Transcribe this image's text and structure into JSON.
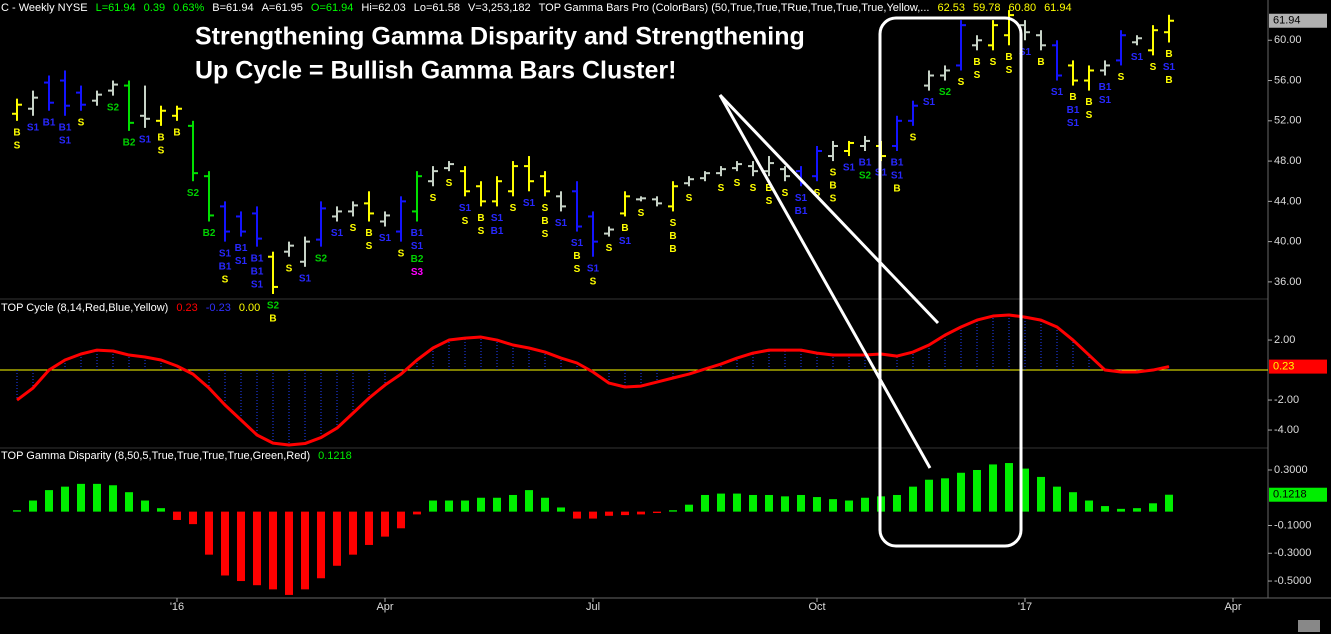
{
  "chart_data": [
    {
      "type": "ohlc",
      "title": "C - Weekly  NYSE",
      "header": [
        {
          "text": "L=61.94",
          "color": "#00ff00"
        },
        {
          "text": "0.39",
          "color": "#00ff00"
        },
        {
          "text": "0.63%",
          "color": "#00ff00"
        },
        {
          "text": "B=61.94",
          "color": "#ffffff"
        },
        {
          "text": "A=61.95",
          "color": "#ffffff"
        },
        {
          "text": "O=61.94",
          "color": "#00ff00"
        },
        {
          "text": "Hi=62.03",
          "color": "#ffffff"
        },
        {
          "text": "Lo=61.58",
          "color": "#ffffff"
        },
        {
          "text": "V=3,253,182",
          "color": "#ffffff"
        },
        {
          "text": "TOP Gamma Bars Pro (ColorBars) (50,True,True,TRue,True,True,True,Yellow,...",
          "color": "#ffffff"
        },
        {
          "text": "62.53",
          "color": "#ffff00"
        },
        {
          "text": "59.78",
          "color": "#ffff00"
        },
        {
          "text": "60.80",
          "color": "#ffff00"
        },
        {
          "text": "61.94",
          "color": "#ffff00"
        }
      ],
      "annotation": [
        "Strengthening Gamma Disparity and Strengthening",
        "Up Cycle = Bullish Gamma Bars Cluster!"
      ],
      "categories": [
        null,
        null,
        null,
        null,
        null,
        null,
        null,
        null,
        null,
        null,
        "'16",
        null,
        null,
        null,
        null,
        null,
        null,
        null,
        null,
        null,
        null,
        null,
        null,
        "Apr",
        null,
        null,
        null,
        null,
        null,
        null,
        null,
        null,
        null,
        null,
        null,
        null,
        "Jul",
        null,
        null,
        null,
        null,
        null,
        null,
        null,
        null,
        null,
        null,
        null,
        null,
        null,
        "Oct",
        null,
        null,
        null,
        null,
        null,
        null,
        null,
        null,
        null,
        null,
        null,
        null,
        "'17",
        null,
        null,
        null,
        null,
        null,
        null,
        null,
        null,
        null,
        null,
        null,
        null,
        "Apr",
        null
      ],
      "open": [
        52.7,
        53.2,
        55.8,
        56,
        54.8,
        54,
        55,
        55.5,
        52.5,
        52,
        52.5,
        51.5,
        46.5,
        43.5,
        42.5,
        42.8,
        38.5,
        39,
        38,
        40.2,
        42.5,
        43,
        43.8,
        42,
        41,
        43,
        46,
        47.3,
        47,
        45.5,
        44,
        45,
        47.5,
        46.5,
        44.5,
        45,
        42.5,
        40.8,
        42.8,
        44.2,
        44.2,
        43.5,
        45.8,
        46.3,
        46.8,
        47.3,
        47.5,
        47,
        47.2,
        47,
        46.5,
        48.5,
        49,
        49.5,
        49.5,
        49.5,
        52,
        55.5,
        56.5,
        57.5,
        59.5,
        59.5,
        60.5,
        61.5,
        60.5,
        59.5,
        57.5,
        56,
        57,
        58,
        59.8,
        59,
        60.8,
        null,
        null,
        null,
        null,
        null
      ],
      "high": [
        54.2,
        55,
        56.5,
        57,
        55.5,
        55,
        56,
        56,
        55.5,
        53.5,
        53.5,
        52,
        47,
        44,
        43,
        43.5,
        39,
        40,
        40.5,
        44,
        43.5,
        44,
        45,
        43,
        44.5,
        47,
        47.5,
        48,
        47.5,
        46,
        46.5,
        48,
        48.5,
        47,
        45,
        46,
        43,
        41.5,
        45,
        44.5,
        44.5,
        46,
        46.5,
        47,
        47.5,
        48,
        48,
        48.5,
        47.5,
        47.5,
        49.5,
        50,
        50,
        50.5,
        50,
        52.5,
        54,
        57,
        57.5,
        62,
        60.5,
        62,
        63,
        62,
        61,
        60,
        58,
        57.5,
        58,
        61,
        60.5,
        61.5,
        62.53,
        null,
        null,
        null,
        null,
        null
      ],
      "low": [
        52,
        52.5,
        53,
        52.5,
        53,
        53.5,
        54.5,
        51,
        51.3,
        51.5,
        52,
        46,
        42,
        40,
        40.5,
        39.5,
        34.8,
        38.5,
        37.5,
        39.5,
        42,
        42.5,
        42,
        41.5,
        40,
        42,
        45.5,
        47,
        44.5,
        43.5,
        43.5,
        44.5,
        45,
        44.5,
        43,
        41,
        38.5,
        40.5,
        42.5,
        44,
        43.5,
        43,
        45.5,
        46,
        46.5,
        47,
        46.5,
        46.5,
        46,
        45.5,
        46,
        48,
        48.5,
        49,
        48,
        49,
        51.5,
        55,
        56,
        57,
        59,
        59,
        59.5,
        60,
        59,
        56,
        55.5,
        55,
        56.5,
        57.5,
        59.5,
        58.5,
        59.78,
        null,
        null,
        null,
        null,
        null
      ],
      "close": [
        53.6,
        54.3,
        53.8,
        53.5,
        53.6,
        54.6,
        55.6,
        51.8,
        52.2,
        53,
        53.2,
        46.8,
        42.6,
        41,
        41,
        40.3,
        35.5,
        39.6,
        40,
        43.3,
        43,
        43.6,
        42.8,
        42.6,
        44,
        46.5,
        47,
        47.7,
        45,
        44,
        46,
        47.5,
        46,
        45,
        43.5,
        41.5,
        40,
        41.2,
        44.5,
        44.3,
        43.8,
        45.5,
        46.2,
        46.8,
        47.2,
        47.7,
        47,
        47.8,
        46.5,
        45.8,
        49,
        49.5,
        49.8,
        50,
        48.5,
        52,
        53.5,
        56.5,
        57,
        61.5,
        60,
        61.5,
        62.5,
        60.8,
        59.5,
        56.5,
        56,
        57,
        57.5,
        60.5,
        60.2,
        61,
        61.94,
        null,
        null,
        null,
        null,
        null
      ],
      "bar_colors": [
        "#ffff00",
        "#c8d4c8",
        "#1414ff",
        "#1414ff",
        "#1414ff",
        "#c8d4c8",
        "#c8d4c8",
        "#00e000",
        "#c8d4c8",
        "#ffff00",
        "#ffff00",
        "#00e000",
        "#00e000",
        "#1414ff",
        "#1414ff",
        "#1414ff",
        "#ffff00",
        "#c8d4c8",
        "#c8d4c8",
        "#1414ff",
        "#c8d4c8",
        "#c8d4c8",
        "#ffff00",
        "#c8d4c8",
        "#1414ff",
        "#00e000",
        "#c8d4c8",
        "#c8d4c8",
        "#ffff00",
        "#ffff00",
        "#ffff00",
        "#ffff00",
        "#ffff00",
        "#ffff00",
        "#c8d4c8",
        "#1414ff",
        "#1414ff",
        "#c8d4c8",
        "#ffff00",
        "#c8d4c8",
        "#c8d4c8",
        "#ffff00",
        "#c8d4c8",
        "#c8d4c8",
        "#c8d4c8",
        "#c8d4c8",
        "#c8d4c8",
        "#c8d4c8",
        "#c8d4c8",
        "#1414ff",
        "#1414ff",
        "#c8d4c8",
        "#ffff00",
        "#c8d4c8",
        "#ffff00",
        "#1414ff",
        "#1414ff",
        "#c8d4c8",
        "#c8d4c8",
        "#1414ff",
        "#c8d4c8",
        "#ffff00",
        "#ffff00",
        "#c8d4c8",
        "#c8d4c8",
        "#1414ff",
        "#ffff00",
        "#ffff00",
        "#c8d4c8",
        "#1414ff",
        "#c8d4c8",
        "#ffff00",
        "#ffff00",
        null,
        null,
        null,
        null,
        null
      ],
      "signals": [
        [
          "B",
          "S"
        ],
        [
          "S1"
        ],
        [
          "B1"
        ],
        [
          "B1",
          "S1"
        ],
        [
          "S"
        ],
        null,
        [
          "S2"
        ],
        [
          "B2"
        ],
        [
          "S1"
        ],
        [
          "B",
          "S"
        ],
        [
          "B"
        ],
        [
          "S2"
        ],
        [
          "B2"
        ],
        [
          "S1",
          "B1",
          "S"
        ],
        [
          "B1",
          "S1"
        ],
        [
          "B1",
          "B1",
          "S1"
        ],
        [
          "S2",
          "B"
        ],
        [
          "S"
        ],
        [
          "S1"
        ],
        [
          "S2"
        ],
        [
          "S1"
        ],
        [
          "S"
        ],
        [
          "B",
          "S"
        ],
        [
          "S1"
        ],
        [
          "S"
        ],
        [
          "B1",
          "S1",
          "B2",
          "S3"
        ],
        [
          "S"
        ],
        [
          "S"
        ],
        [
          "S1",
          "S"
        ],
        [
          "B",
          "S"
        ],
        [
          "S1",
          "B1"
        ],
        [
          "S"
        ],
        [
          "S1"
        ],
        [
          "S",
          "B",
          "S"
        ],
        [
          "S1"
        ],
        [
          "S1",
          "B",
          "S"
        ],
        [
          "S1",
          "S"
        ],
        [
          "S"
        ],
        [
          "B",
          "S1"
        ],
        [
          "S"
        ],
        null,
        [
          "S",
          "B",
          "B"
        ],
        [
          "S"
        ],
        null,
        [
          "S"
        ],
        [
          "S"
        ],
        [
          "S"
        ],
        [
          "B",
          "S"
        ],
        [
          "S"
        ],
        [
          "S1",
          "B1"
        ],
        [
          "S"
        ],
        [
          "S",
          "B",
          "S"
        ],
        [
          "S1"
        ],
        [
          "B1",
          "S2"
        ],
        [
          "S1"
        ],
        [
          "B1",
          "S1",
          "B"
        ],
        [
          "S"
        ],
        [
          "S1"
        ],
        [
          "S2"
        ],
        [
          "S"
        ],
        [
          "B",
          "S"
        ],
        [
          "S"
        ],
        [
          "B",
          "S"
        ],
        [
          "S1"
        ],
        [
          "B"
        ],
        [
          "S1"
        ],
        [
          "B",
          "B1",
          "S1"
        ],
        [
          "B",
          "S"
        ],
        [
          "B1",
          "S1"
        ],
        [
          "S"
        ],
        [
          "S1"
        ],
        [
          "S"
        ],
        [
          "B",
          "S1",
          "B"
        ],
        null,
        null,
        null,
        null,
        null
      ],
      "signal_colors": {
        "S": "#ffff00",
        "B": "#ffff00",
        "S1": "#2828ff",
        "B1": "#2828ff",
        "S2": "#00d000",
        "B2": "#00d000",
        "S3": "#ff00ff"
      },
      "ylim": [
        34.4,
        64
      ],
      "yticks": [
        {
          "value": 60,
          "label": "60.00"
        },
        {
          "value": 56,
          "label": "56.00"
        },
        {
          "value": 52,
          "label": "52.00"
        },
        {
          "value": 48,
          "label": "48.00"
        },
        {
          "value": 44,
          "label": "44.00"
        },
        {
          "value": 40,
          "label": "40.00"
        },
        {
          "value": 36,
          "label": "36.00"
        }
      ]
    },
    {
      "type": "line",
      "title": "TOP Cycle (8,14,Red,Blue,Yellow)",
      "legend": [
        {
          "text": "-0.23",
          "color": "#3030ff"
        },
        {
          "text": "0.00",
          "color": "#ffff00"
        }
      ],
      "color": "#ff0000",
      "histogram_color": "#2040ff",
      "zero_color": "#ffff00",
      "values": [
        -2.0,
        -1.2,
        0,
        0.67,
        1.07,
        1.33,
        1.27,
        1.0,
        0.87,
        0.67,
        0.27,
        -0.27,
        -1.2,
        -2.33,
        -3.33,
        -4.33,
        -4.87,
        -5.0,
        -4.9,
        -4.5,
        -3.87,
        -2.87,
        -1.87,
        -1.0,
        -0.27,
        0.67,
        1.47,
        2.0,
        2.13,
        2.2,
        2.0,
        1.67,
        1.47,
        1.2,
        0.8,
        0.47,
        -0.13,
        -0.87,
        -1.13,
        -1.07,
        -0.8,
        -0.53,
        -0.27,
        0.07,
        0.4,
        0.8,
        1.13,
        1.33,
        1.33,
        1.33,
        1.13,
        1.0,
        1.0,
        1.0,
        1.07,
        0.93,
        1.2,
        1.67,
        2.33,
        2.87,
        3.33,
        3.6,
        3.67,
        3.53,
        3.33,
        2.87,
        2.0,
        1.0,
        0,
        -0.13,
        -0.13,
        0,
        0.23,
        null,
        null,
        null,
        null,
        null
      ],
      "ylim": [
        -5.13,
        4.67
      ],
      "yticks": [
        {
          "value": 2,
          "label": "2.00"
        },
        {
          "value": -2,
          "label": "-2.00"
        },
        {
          "value": -4,
          "label": "-4.00"
        }
      ]
    },
    {
      "type": "bar",
      "title": "TOP Gamma  Disparity (8,50,5,True,True,True,True,Green,Red)",
      "positive_color": "#00ee00",
      "negative_color": "#ff0000",
      "values": [
        0.01,
        0.08,
        0.155,
        0.18,
        0.2,
        0.2,
        0.19,
        0.14,
        0.08,
        0.025,
        -0.06,
        -0.09,
        -0.31,
        -0.46,
        -0.5,
        -0.53,
        -0.56,
        -0.6,
        -0.56,
        -0.48,
        -0.39,
        -0.31,
        -0.24,
        -0.18,
        -0.12,
        -0.02,
        0.08,
        0.08,
        0.08,
        0.1,
        0.1,
        0.12,
        0.155,
        0.1,
        0.03,
        -0.05,
        -0.05,
        -0.03,
        -0.025,
        -0.02,
        -0.01,
        0.01,
        0.05,
        0.12,
        0.13,
        0.13,
        0.12,
        0.12,
        0.11,
        0.12,
        0.105,
        0.09,
        0.08,
        0.1,
        0.11,
        0.12,
        0.18,
        0.23,
        0.24,
        0.28,
        0.3,
        0.34,
        0.35,
        0.31,
        0.25,
        0.18,
        0.14,
        0.08,
        0.04,
        0.02,
        0.025,
        0.06,
        0.1218,
        null,
        null,
        null,
        null,
        null
      ],
      "ylim": [
        -0.615,
        0.444
      ],
      "yticks": [
        {
          "value": 0.3,
          "label": "0.3000"
        },
        {
          "value": -0.1,
          "label": "-0.1000"
        },
        {
          "value": -0.3,
          "label": "-0.3000"
        },
        {
          "value": -0.5,
          "label": "-0.5000"
        }
      ]
    }
  ]
}
